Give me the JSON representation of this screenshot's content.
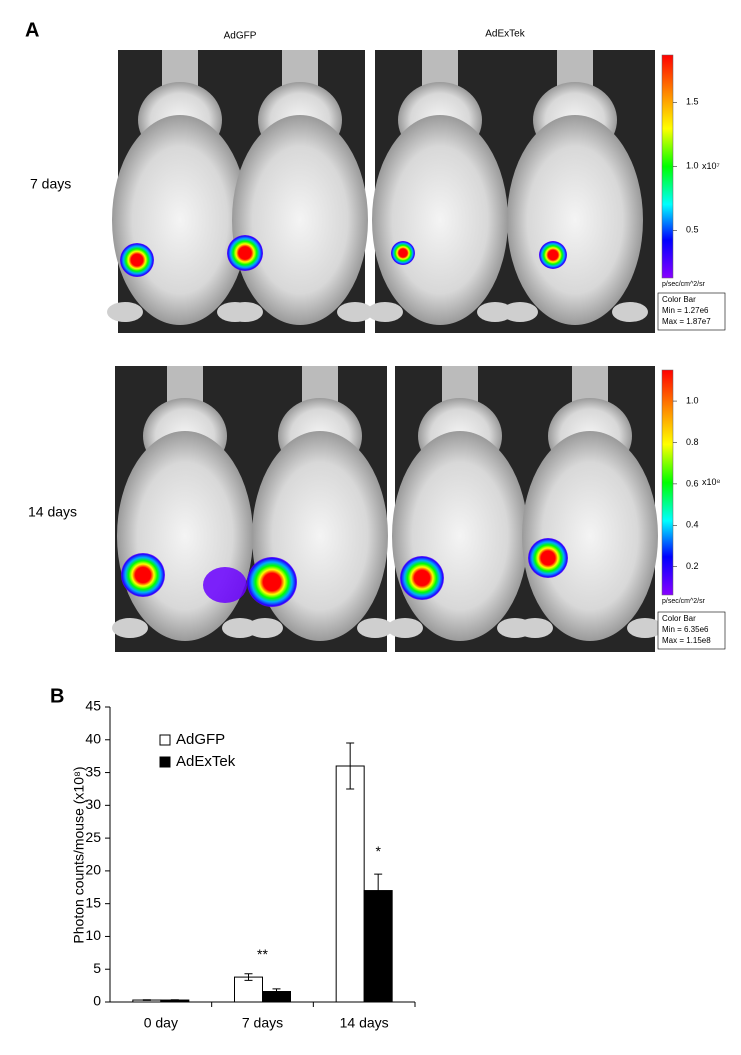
{
  "panel_a": {
    "label": "A",
    "columns": [
      "AdGFP",
      "AdExTek"
    ],
    "rows": [
      {
        "label": "7 days",
        "colorbar": {
          "lim": [
            0.127,
            1.87
          ],
          "ticks": [
            {
              "value": 0.5,
              "label": "0.5"
            },
            {
              "value": 1,
              "label": "1.0"
            },
            {
              "value": 1.5,
              "label": "1.5"
            }
          ],
          "multiplier": "x10⁷",
          "units": "p/sec/cm^2/sr",
          "box": [
            "Color Bar",
            "Min = 1.27e6",
            "Max = 1.87e7"
          ]
        }
      },
      {
        "label": "14 days",
        "colorbar": {
          "lim": [
            0.0635,
            1.15
          ],
          "ticks": [
            0.2,
            0.4,
            0.6,
            0.8,
            {
              "value": 1,
              "label": "1.0"
            }
          ],
          "multiplier": "x10⁸",
          "units": "p/sec/cm^2/sr",
          "box": [
            "Color Bar",
            "Min = 6.35e6",
            "Max = 1.15e8"
          ]
        }
      }
    ]
  },
  "chart_data": {
    "type": "bar",
    "label": "B",
    "ylabel": "Photon counts/mouse (x10⁸)",
    "categories": [
      "0 day",
      "7 days",
      "14 days"
    ],
    "series": [
      {
        "name": "AdGFP",
        "color": "#ffffff",
        "values": [
          0.3,
          3.8,
          36
        ],
        "errors": [
          0.05,
          0.5,
          3.5
        ]
      },
      {
        "name": "AdExTek",
        "color": "#000000",
        "values": [
          0.3,
          1.6,
          17
        ],
        "errors": [
          0.05,
          0.4,
          2.5
        ]
      }
    ],
    "annotations": [
      "**",
      "*"
    ],
    "ylim": [
      0,
      45
    ],
    "yticks": [
      0,
      5,
      10,
      15,
      20,
      25,
      30,
      35,
      40,
      45
    ],
    "grid": false
  }
}
